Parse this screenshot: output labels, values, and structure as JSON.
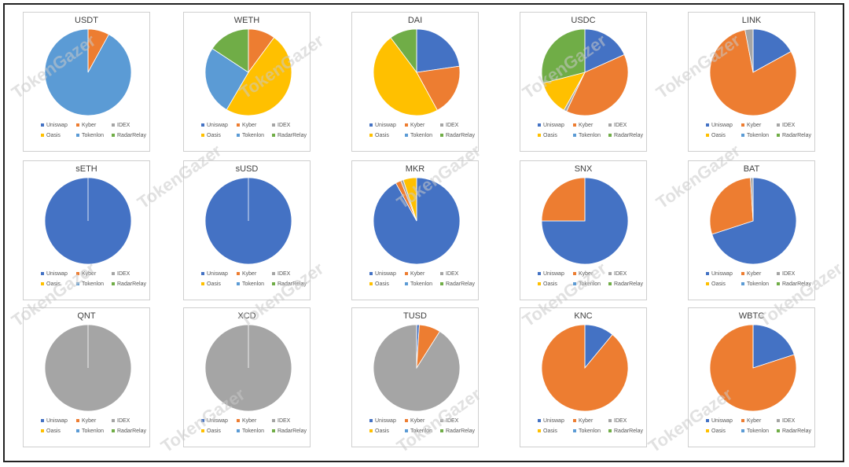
{
  "watermark": "TokenGazer",
  "exchanges": [
    "Uniswap",
    "Kyber",
    "IDEX",
    "Oasis",
    "Tokenlon",
    "RadarRelay"
  ],
  "colors": {
    "Uniswap": "#4472c4",
    "Kyber": "#ed7d31",
    "IDEX": "#a5a5a5",
    "Oasis": "#ffc000",
    "Tokenlon": "#5b9bd5",
    "RadarRelay": "#70ad47"
  },
  "chart_data": [
    {
      "type": "pie",
      "title": "USDT",
      "categories": [
        "Uniswap",
        "Kyber",
        "IDEX",
        "Oasis",
        "Tokenlon",
        "RadarRelay"
      ],
      "values": [
        0,
        8,
        0,
        0,
        92,
        0
      ]
    },
    {
      "type": "pie",
      "title": "WETH",
      "categories": [
        "Uniswap",
        "Kyber",
        "IDEX",
        "Oasis",
        "Tokenlon",
        "RadarRelay"
      ],
      "values": [
        0,
        9,
        0,
        43,
        23,
        14
      ]
    },
    {
      "type": "pie",
      "title": "DAI",
      "categories": [
        "Uniswap",
        "Kyber",
        "IDEX",
        "Oasis",
        "Tokenlon",
        "RadarRelay"
      ],
      "values": [
        20,
        17,
        0,
        42,
        0,
        9
      ]
    },
    {
      "type": "pie",
      "title": "USDC",
      "categories": [
        "Uniswap",
        "Kyber",
        "IDEX",
        "Oasis",
        "Tokenlon",
        "RadarRelay"
      ],
      "values": [
        17,
        36,
        1,
        12,
        0,
        27
      ]
    },
    {
      "type": "pie",
      "title": "LINK",
      "categories": [
        "Uniswap",
        "Kyber",
        "IDEX",
        "Oasis",
        "Tokenlon",
        "RadarRelay"
      ],
      "values": [
        17,
        80,
        3,
        0,
        0,
        0
      ]
    },
    {
      "type": "pie",
      "title": "sETH",
      "categories": [
        "Uniswap",
        "Kyber",
        "IDEX",
        "Oasis",
        "Tokenlon",
        "RadarRelay"
      ],
      "values": [
        100,
        0,
        0,
        0,
        0,
        0
      ]
    },
    {
      "type": "pie",
      "title": "sUSD",
      "categories": [
        "Uniswap",
        "Kyber",
        "IDEX",
        "Oasis",
        "Tokenlon",
        "RadarRelay"
      ],
      "values": [
        100,
        0,
        0,
        0,
        0,
        0
      ]
    },
    {
      "type": "pie",
      "title": "MKR",
      "categories": [
        "Uniswap",
        "Kyber",
        "IDEX",
        "Oasis",
        "Tokenlon",
        "RadarRelay"
      ],
      "values": [
        92,
        2,
        1,
        5,
        0,
        0
      ]
    },
    {
      "type": "pie",
      "title": "SNX",
      "categories": [
        "Uniswap",
        "Kyber",
        "IDEX",
        "Oasis",
        "Tokenlon",
        "RadarRelay"
      ],
      "values": [
        75,
        25,
        0,
        0,
        0,
        0
      ]
    },
    {
      "type": "pie",
      "title": "BAT",
      "categories": [
        "Uniswap",
        "Kyber",
        "IDEX",
        "Oasis",
        "Tokenlon",
        "RadarRelay"
      ],
      "values": [
        70,
        29,
        1,
        0,
        0,
        0
      ]
    },
    {
      "type": "pie",
      "title": "QNT",
      "categories": [
        "Uniswap",
        "Kyber",
        "IDEX",
        "Oasis",
        "Tokenlon",
        "RadarRelay"
      ],
      "values": [
        0,
        0,
        100,
        0,
        0,
        0
      ]
    },
    {
      "type": "pie",
      "title": "XCD",
      "categories": [
        "Uniswap",
        "Kyber",
        "IDEX",
        "Oasis",
        "Tokenlon",
        "RadarRelay"
      ],
      "values": [
        0,
        0,
        100,
        0,
        0,
        0
      ]
    },
    {
      "type": "pie",
      "title": "TUSD",
      "categories": [
        "Uniswap",
        "Kyber",
        "IDEX",
        "Oasis",
        "Tokenlon",
        "RadarRelay"
      ],
      "values": [
        1,
        8,
        91,
        0,
        0,
        0
      ]
    },
    {
      "type": "pie",
      "title": "KNC",
      "categories": [
        "Uniswap",
        "Kyber",
        "IDEX",
        "Oasis",
        "Tokenlon",
        "RadarRelay"
      ],
      "values": [
        11,
        89,
        0,
        0,
        0,
        0
      ]
    },
    {
      "type": "pie",
      "title": "WBTC",
      "categories": [
        "Uniswap",
        "Kyber",
        "IDEX",
        "Oasis",
        "Tokenlon",
        "RadarRelay"
      ],
      "values": [
        20,
        80,
        0,
        0,
        0,
        0
      ]
    }
  ]
}
